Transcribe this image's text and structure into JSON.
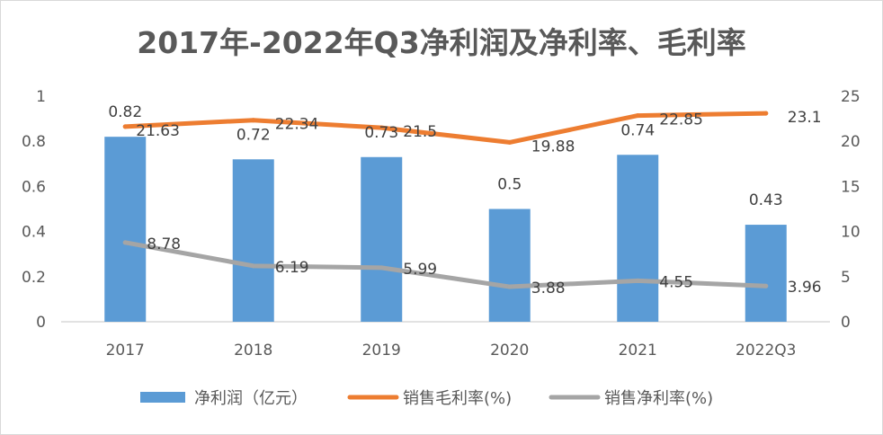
{
  "chart_data": {
    "type": "bar+line",
    "title": "2017年-2022年Q3净利润及净利率、毛利率",
    "categories": [
      "2017",
      "2018",
      "2019",
      "2020",
      "2021",
      "2022Q3"
    ],
    "y_left": {
      "range": [
        0,
        1
      ],
      "ticks": [
        "0",
        "0.2",
        "0.4",
        "0.6",
        "0.8",
        "1"
      ]
    },
    "y_right": {
      "range": [
        0,
        25
      ],
      "ticks": [
        "0",
        "5",
        "10",
        "15",
        "20",
        "25"
      ]
    },
    "grid": false,
    "legend_position": "bottom",
    "series": [
      {
        "name": "净利润（亿元）",
        "type": "bar",
        "axis": "left",
        "color": "#5B9BD5",
        "values": [
          0.82,
          0.72,
          0.73,
          0.5,
          0.74,
          0.43
        ],
        "labels": [
          "0.82",
          "0.72",
          "0.73",
          "0.5",
          "0.74",
          "0.43"
        ]
      },
      {
        "name": "销售毛利率(%)",
        "type": "line",
        "axis": "right",
        "color": "#ED7D31",
        "values": [
          21.63,
          22.34,
          21.5,
          19.88,
          22.85,
          23.1
        ],
        "labels": [
          "21.63",
          "22.34",
          "21.5",
          "19.88",
          "22.85",
          "23.1"
        ]
      },
      {
        "name": "销售净利率(%)",
        "type": "line",
        "axis": "right",
        "color": "#A5A5A5",
        "values": [
          8.78,
          6.19,
          5.99,
          3.88,
          4.55,
          3.96
        ],
        "labels": [
          "8.78",
          "6.19",
          "5.99",
          "3.88",
          "4.55",
          "3.96"
        ]
      }
    ]
  }
}
